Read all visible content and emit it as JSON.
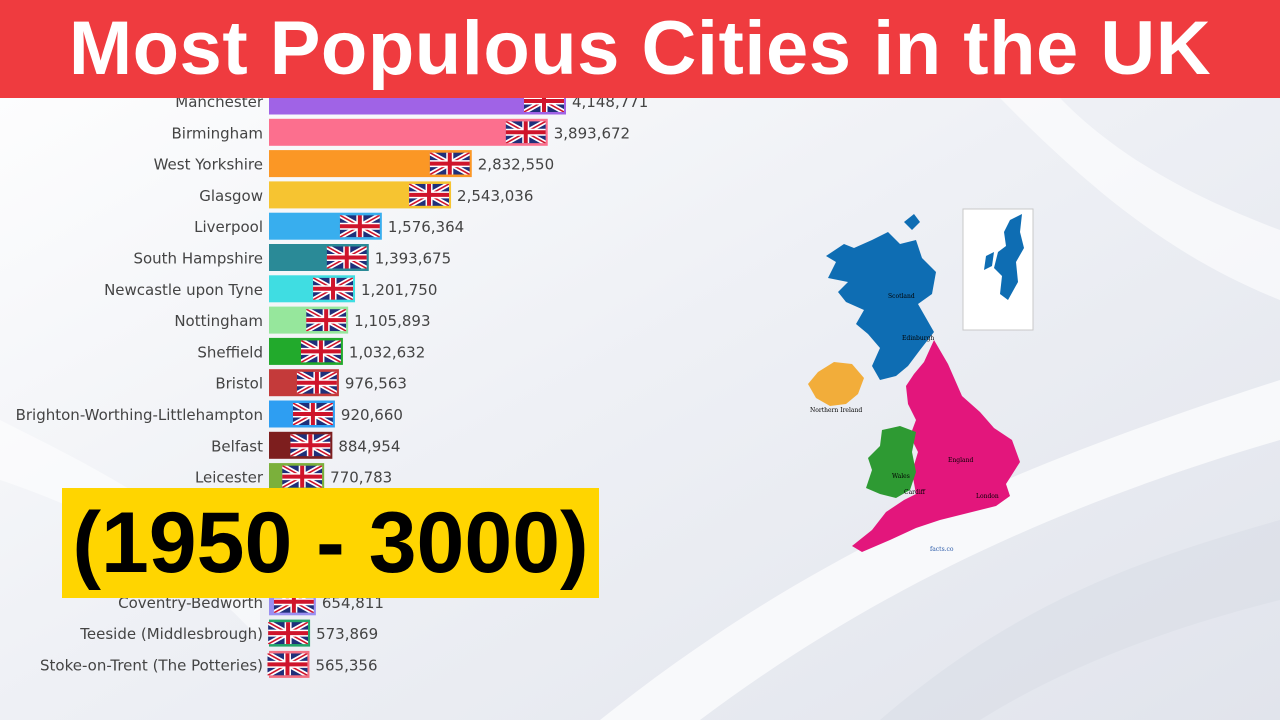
{
  "banner": {
    "title": "Most Populous Cities in the UK"
  },
  "year_range": "(1950 - 3000)",
  "map": {
    "labels": {
      "scotland": "Scotland",
      "edinburgh": "Edinburgh",
      "northern_ireland": "Northern Ireland",
      "wales": "Wales",
      "cardiff": "Cardiff",
      "england": "England",
      "london": "London",
      "credit": "facts.co"
    },
    "colors": {
      "scotland": "#0e6db3",
      "northern_ireland": "#f2ad3a",
      "wales": "#2e9a33",
      "england": "#e3167c"
    }
  },
  "chart_data": {
    "type": "bar",
    "orientation": "horizontal",
    "title": "",
    "xlabel": "",
    "ylabel": "",
    "categories": [
      "Manchester",
      "Birmingham",
      "West Yorkshire",
      "Glasgow",
      "Liverpool",
      "South Hampshire",
      "Newcastle upon Tyne",
      "Nottingham",
      "Sheffield",
      "Bristol",
      "Brighton-Worthing-Littlehampton",
      "Belfast",
      "Leicester",
      "Coventry-Bedworth",
      "Teeside (Middlesbrough)",
      "Stoke-on-Trent (The Potteries)"
    ],
    "values": [
      4148771,
      3893672,
      2832550,
      2543036,
      1576364,
      1393675,
      1201750,
      1105893,
      1032632,
      976563,
      920660,
      884954,
      770783,
      654811,
      573869,
      565356
    ],
    "value_labels": [
      "4,148,771",
      "3,893,672",
      "2,832,550",
      "2,543,036",
      "1,576,364",
      "1,393,675",
      "1,201,750",
      "1,105,893",
      "1,032,632",
      "976,563",
      "920,660",
      "884,954",
      "770,783",
      "654,811",
      "573,869",
      "565,356"
    ],
    "colors": [
      "#a063e6",
      "#fc6f8e",
      "#fb9725",
      "#f6c431",
      "#38aeee",
      "#2a8a97",
      "#3fdde2",
      "#96e79c",
      "#22aa2c",
      "#c43a3a",
      "#2e9ef2",
      "#7d1e1e",
      "#7bb03b",
      "#9a8ff2",
      "#22a56a",
      "#f46f82"
    ],
    "legend": "none",
    "grid": false
  }
}
